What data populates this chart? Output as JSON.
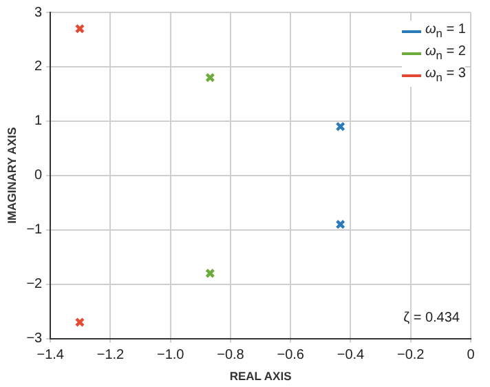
{
  "chart_data": {
    "type": "scatter",
    "xlabel": "REAL AXIS",
    "ylabel": "IMAGINARY AXIS",
    "xlim": [
      -1.4,
      0
    ],
    "ylim": [
      -3,
      3
    ],
    "xticks": [
      {
        "value": -1.4,
        "label": "−1.4"
      },
      {
        "value": -1.2,
        "label": "−1.2"
      },
      {
        "value": -1.0,
        "label": "−1.0"
      },
      {
        "value": -0.8,
        "label": "−0.8"
      },
      {
        "value": -0.6,
        "label": "−0.6"
      },
      {
        "value": -0.4,
        "label": "−0.4"
      },
      {
        "value": -0.2,
        "label": "−0.2"
      },
      0
    ],
    "yticks": [
      {
        "value": -3,
        "label": "−3"
      },
      {
        "value": -2,
        "label": "−2"
      },
      {
        "value": -1,
        "label": "−1"
      },
      0,
      1,
      2,
      3
    ],
    "grid": true,
    "legend": "top right",
    "marker": "cross",
    "annotations": [
      "ζ = 0.434"
    ],
    "series": [
      {
        "name": "ω$_{n}$ = 1",
        "color": "#2b7bb9",
        "x": [
          -0.434,
          -0.434
        ],
        "values": [
          0.9,
          -0.9
        ]
      },
      {
        "name": "ω$_{n}$ = 2",
        "color": "#6cab3c",
        "x": [
          -0.868,
          -0.868
        ],
        "values": [
          1.8,
          -1.8
        ]
      },
      {
        "name": "ω$_{n}$ = 3",
        "color": "#e34a33",
        "x": [
          -1.302,
          -1.302
        ],
        "values": [
          2.7,
          -2.7
        ]
      }
    ]
  }
}
